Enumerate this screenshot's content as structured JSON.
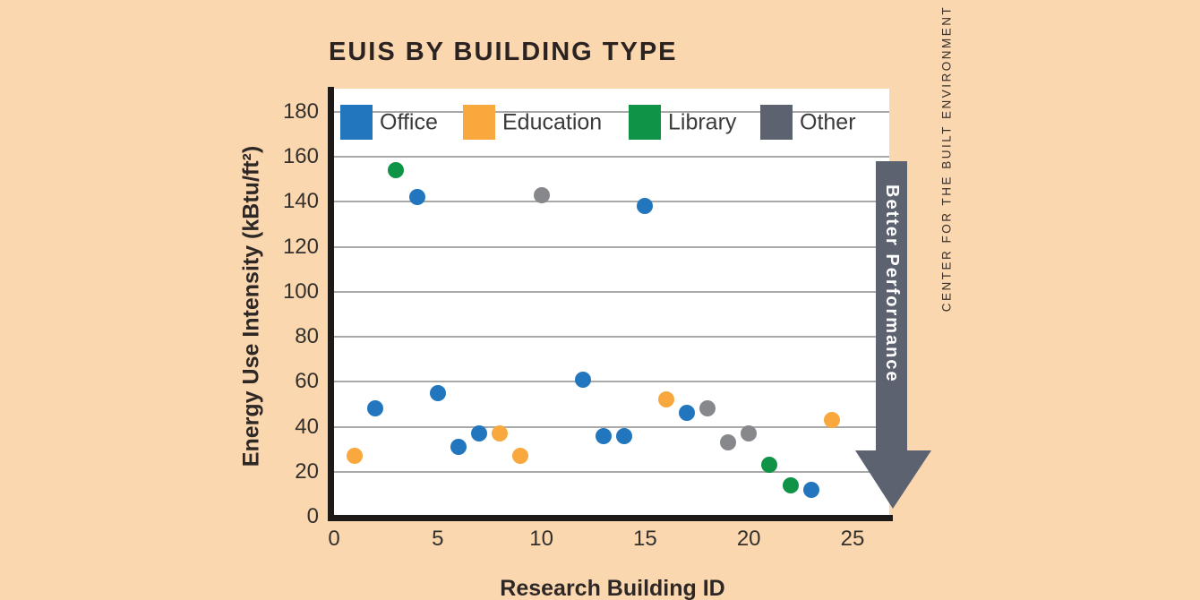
{
  "page": {
    "background_color": "#fbd7b0",
    "sidebar_text": "CENTER FOR THE BUILT ENVIRONMENT",
    "arrow_label": "Better Performance",
    "arrow_color": "#5c6270"
  },
  "chart_data": {
    "type": "scatter",
    "title": "EUIS BY BUILDING TYPE",
    "xlabel": "Research Building ID",
    "ylabel": "Energy Use Intensity (kBtu/ft²)",
    "xlim": [
      0,
      26.8
    ],
    "ylim": [
      0,
      190
    ],
    "xticks": [
      0,
      5,
      10,
      15,
      20,
      25
    ],
    "yticks": [
      0,
      20,
      40,
      60,
      80,
      100,
      120,
      140,
      160,
      180
    ],
    "grid": true,
    "legend_position": "top-inside",
    "legend": [
      {
        "label": "Office",
        "swatch_color": "#2176bd",
        "dot_color": "#2176bd"
      },
      {
        "label": "Education",
        "swatch_color": "#f8a83d",
        "dot_color": "#f8a83d"
      },
      {
        "label": "Library",
        "swatch_color": "#0f9347",
        "dot_color": "#0f9347"
      },
      {
        "label": "Other",
        "swatch_color": "#5c6270",
        "dot_color": "#86888c"
      }
    ],
    "points": [
      {
        "id": 1,
        "category": "Education",
        "eui": 27
      },
      {
        "id": 2,
        "category": "Office",
        "eui": 48
      },
      {
        "id": 3,
        "category": "Library",
        "eui": 154
      },
      {
        "id": 4,
        "category": "Office",
        "eui": 142
      },
      {
        "id": 5,
        "category": "Office",
        "eui": 55
      },
      {
        "id": 6,
        "category": "Office",
        "eui": 31
      },
      {
        "id": 7,
        "category": "Office",
        "eui": 37
      },
      {
        "id": 8,
        "category": "Education",
        "eui": 37
      },
      {
        "id": 9,
        "category": "Education",
        "eui": 27
      },
      {
        "id": 10,
        "category": "Other",
        "eui": 143
      },
      {
        "id": 12,
        "category": "Office",
        "eui": 61
      },
      {
        "id": 13,
        "category": "Office",
        "eui": 36
      },
      {
        "id": 14,
        "category": "Office",
        "eui": 36
      },
      {
        "id": 15,
        "category": "Office",
        "eui": 138
      },
      {
        "id": 16,
        "category": "Education",
        "eui": 52
      },
      {
        "id": 17,
        "category": "Office",
        "eui": 46
      },
      {
        "id": 18,
        "category": "Other",
        "eui": 48
      },
      {
        "id": 19,
        "category": "Other",
        "eui": 33
      },
      {
        "id": 20,
        "category": "Other",
        "eui": 37
      },
      {
        "id": 21,
        "category": "Library",
        "eui": 23
      },
      {
        "id": 22,
        "category": "Library",
        "eui": 14
      },
      {
        "id": 23,
        "category": "Office",
        "eui": 12
      },
      {
        "id": 24,
        "category": "Education",
        "eui": 43
      }
    ]
  }
}
